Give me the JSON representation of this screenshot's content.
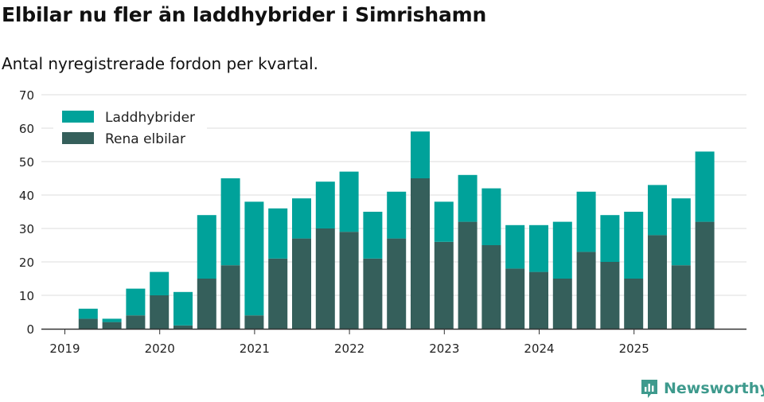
{
  "header": {
    "title": "Elbilar nu fler än laddhybrider i Simrishamn",
    "subtitle": "Antal nyregistrerade fordon per kvartal."
  },
  "brand": {
    "name": "Newsworthy",
    "icon": "newsworthy-logo-icon"
  },
  "colors": {
    "laddhybrider": "#00a29a",
    "elbilar": "#355f5b",
    "grid": "#dddddd",
    "axis": "#333333",
    "brand": "#3e9a8d"
  },
  "chart_data": {
    "type": "bar",
    "stacked": true,
    "categories": [
      "2019 Q1",
      "2019 Q2",
      "2019 Q3",
      "2019 Q4",
      "2020 Q1",
      "2020 Q2",
      "2020 Q3",
      "2020 Q4",
      "2021 Q1",
      "2021 Q2",
      "2021 Q3",
      "2021 Q4",
      "2022 Q1",
      "2022 Q2",
      "2022 Q3",
      "2022 Q4",
      "2023 Q1",
      "2023 Q2",
      "2023 Q3",
      "2023 Q4",
      "2024 Q1",
      "2024 Q2",
      "2024 Q3",
      "2024 Q4",
      "2025 Q1",
      "2025 Q2",
      "2025 Q3",
      "2025 Q4"
    ],
    "series": [
      {
        "name": "Rena elbilar",
        "color_key": "elbilar",
        "values": [
          0,
          3,
          2,
          4,
          10,
          1,
          15,
          19,
          4,
          21,
          27,
          30,
          29,
          21,
          27,
          45,
          26,
          32,
          25,
          18,
          17,
          15,
          23,
          20,
          15,
          28,
          19,
          32
        ]
      },
      {
        "name": "Laddhybrider",
        "color_key": "laddhybrider",
        "values": [
          0,
          3,
          1,
          8,
          7,
          10,
          19,
          26,
          34,
          15,
          12,
          14,
          18,
          14,
          14,
          14,
          12,
          14,
          17,
          13,
          14,
          17,
          18,
          14,
          20,
          15,
          20,
          21
        ]
      }
    ],
    "legend_order": [
      "Laddhybrider",
      "Rena elbilar"
    ],
    "legend_position": "top-left",
    "x_tick_labels": [
      "2019",
      "2020",
      "2021",
      "2022",
      "2023",
      "2024",
      "2025"
    ],
    "x_tick_categories": [
      "2019 Q1",
      "2020 Q1",
      "2021 Q1",
      "2022 Q1",
      "2023 Q1",
      "2024 Q1",
      "2025 Q1"
    ],
    "y_ticks": [
      0,
      10,
      20,
      30,
      40,
      50,
      60,
      70
    ],
    "ylim": [
      0,
      70
    ],
    "grid": true,
    "xlabel": "",
    "ylabel": ""
  }
}
